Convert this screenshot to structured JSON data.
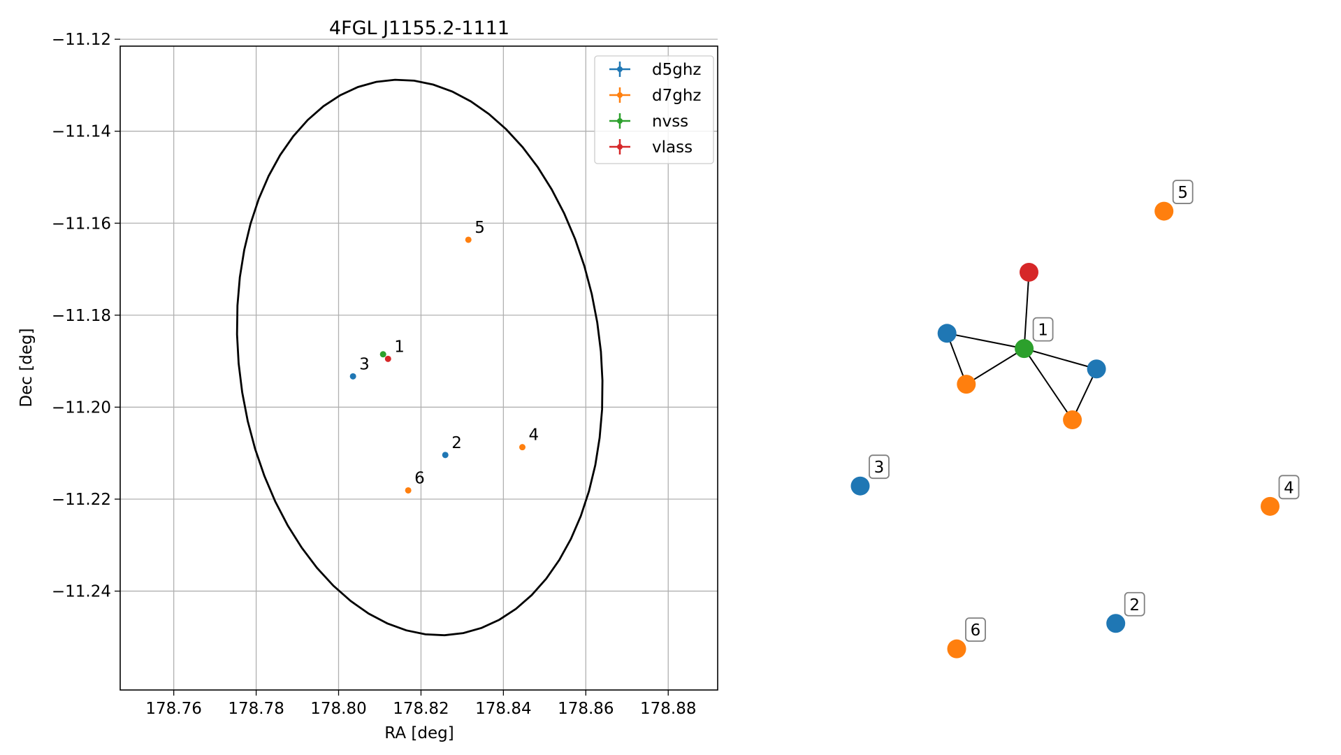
{
  "chart_data": [
    {
      "type": "scatter",
      "title": "4FGL J1155.2-1111",
      "xlabel": "RA [deg]",
      "ylabel": "Dec [deg]",
      "xlim": [
        178.747,
        178.892
      ],
      "ylim": [
        -11.2615,
        -11.1215
      ],
      "xticks": [
        178.76,
        178.78,
        178.8,
        178.82,
        178.84,
        178.86,
        178.88
      ],
      "xtick_labels": [
        "178.76",
        "178.78",
        "178.80",
        "178.82",
        "178.84",
        "178.86",
        "178.88"
      ],
      "yticks": [
        -11.12,
        -11.14,
        -11.16,
        -11.18,
        -11.2,
        -11.22,
        -11.24
      ],
      "ytick_labels": [
        "−11.12",
        "−11.14",
        "−11.16",
        "−11.18",
        "−11.20",
        "−11.22",
        "−11.24"
      ],
      "grid": true,
      "legend_position": "top-right",
      "ellipse": {
        "center": [
          178.8197,
          -11.1892
        ],
        "width": 0.0875,
        "height": 0.1217,
        "angle_deg": 10,
        "color": "#000000"
      },
      "series": [
        {
          "name": "d5ghz",
          "color": "#1f77b4",
          "points": [
            {
              "x": 178.8035,
              "y": -11.1933,
              "label": "3"
            },
            {
              "x": 178.8259,
              "y": -11.2104,
              "label": "2"
            }
          ]
        },
        {
          "name": "d7ghz",
          "color": "#ff7f0e",
          "points": [
            {
              "x": 178.8315,
              "y": -11.1636,
              "label": "5"
            },
            {
              "x": 178.8446,
              "y": -11.2087,
              "label": "4"
            },
            {
              "x": 178.8169,
              "y": -11.2181,
              "label": "6"
            }
          ]
        },
        {
          "name": "nvss",
          "color": "#2ca02c",
          "points": [
            {
              "x": 178.8108,
              "y": -11.1885,
              "label": ""
            }
          ]
        },
        {
          "name": "vlass",
          "color": "#d62728",
          "points": [
            {
              "x": 178.812,
              "y": -11.1895,
              "label": "1"
            }
          ]
        }
      ]
    },
    {
      "type": "network",
      "nodes": [
        {
          "id": "v",
          "color": "#d62728",
          "x": 0.45,
          "y": 0.77,
          "label": ""
        },
        {
          "id": "n",
          "color": "#2ca02c",
          "x": 0.44,
          "y": 0.62,
          "label": "1"
        },
        {
          "id": "b1",
          "color": "#1f77b4",
          "x": 0.28,
          "y": 0.65,
          "label": ""
        },
        {
          "id": "o1",
          "color": "#ff7f0e",
          "x": 0.32,
          "y": 0.55,
          "label": ""
        },
        {
          "id": "b2",
          "color": "#1f77b4",
          "x": 0.59,
          "y": 0.58,
          "label": ""
        },
        {
          "id": "o2",
          "color": "#ff7f0e",
          "x": 0.54,
          "y": 0.48,
          "label": ""
        },
        {
          "id": "s5",
          "color": "#ff7f0e",
          "x": 0.73,
          "y": 0.89,
          "label": "5"
        },
        {
          "id": "s3",
          "color": "#1f77b4",
          "x": 0.1,
          "y": 0.35,
          "label": "3"
        },
        {
          "id": "s4",
          "color": "#ff7f0e",
          "x": 0.95,
          "y": 0.31,
          "label": "4"
        },
        {
          "id": "s2",
          "color": "#1f77b4",
          "x": 0.63,
          "y": 0.08,
          "label": "2"
        },
        {
          "id": "s6",
          "color": "#ff7f0e",
          "x": 0.3,
          "y": 0.03,
          "label": "6"
        }
      ],
      "edges": [
        [
          "v",
          "n"
        ],
        [
          "n",
          "b1"
        ],
        [
          "n",
          "o1"
        ],
        [
          "b1",
          "o1"
        ],
        [
          "n",
          "b2"
        ],
        [
          "n",
          "o2"
        ],
        [
          "b2",
          "o2"
        ]
      ]
    }
  ]
}
